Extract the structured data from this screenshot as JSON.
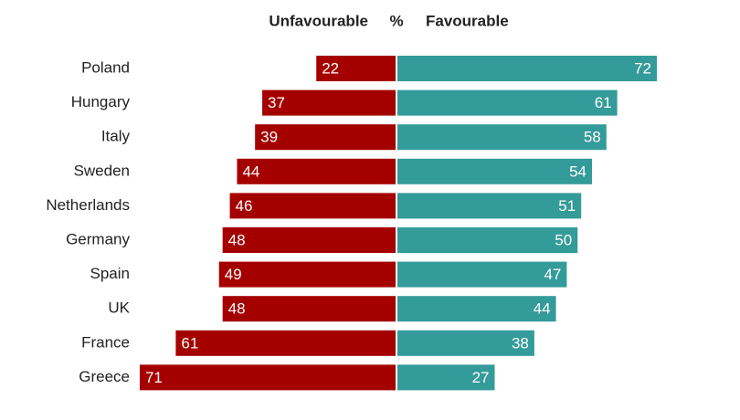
{
  "chart_data": {
    "type": "diverging-bar",
    "unit_label": "%",
    "categories": [
      "Poland",
      "Hungary",
      "Italy",
      "Sweden",
      "Netherlands",
      "Germany",
      "Spain",
      "UK",
      "France",
      "Greece"
    ],
    "series": [
      {
        "name": "Unfavourable",
        "color": "#a50000",
        "side": "left",
        "values": [
          22,
          37,
          39,
          44,
          46,
          48,
          49,
          48,
          61,
          71
        ]
      },
      {
        "name": "Favourable",
        "color": "#339b99",
        "side": "right",
        "values": [
          72,
          61,
          58,
          54,
          51,
          50,
          47,
          44,
          38,
          27
        ]
      }
    ]
  }
}
